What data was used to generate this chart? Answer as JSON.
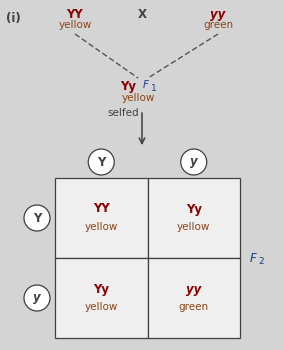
{
  "bg_color": "#d4d4d4",
  "cell_bg_color": "#efefef",
  "title_label": "(i)",
  "parent1_genotype": "YY",
  "parent1_phenotype": "yellow",
  "cross_symbol": "X",
  "parent2_genotype": "yy",
  "parent2_phenotype": "green",
  "f1_genotype": "Yy",
  "f1_label": "F",
  "f1_subscript": "1",
  "f1_phenotype": "yellow",
  "selfed_label": "selfed",
  "col_headers": [
    "Y",
    "y"
  ],
  "row_headers": [
    "Y",
    "y"
  ],
  "cells": [
    [
      "YY",
      "yellow",
      "Yy",
      "yellow"
    ],
    [
      "Yy",
      "yellow",
      "yy",
      "green"
    ]
  ],
  "f2_label": "F",
  "f2_subscript": "2",
  "genotype_color": "#8B0000",
  "phenotype_color": "#8B4513",
  "label_color": "#1a3a8a",
  "dark_color": "#404040",
  "line_color": "#555555"
}
